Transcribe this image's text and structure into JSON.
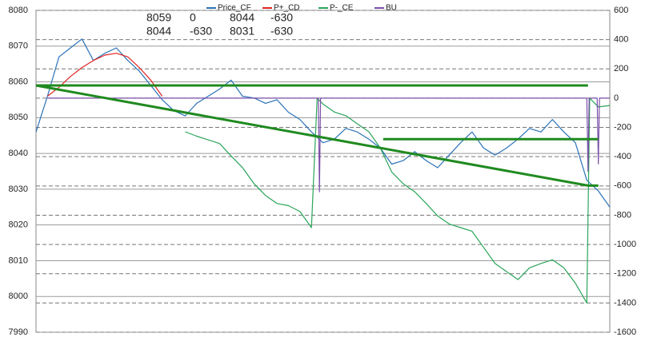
{
  "chart_data": {
    "type": "line",
    "legend": "top",
    "annotations": [
      [
        "8059",
        "0",
        "8044",
        "-630"
      ],
      [
        "8044",
        "-630",
        "8031",
        "-630"
      ]
    ],
    "xlim": [
      0,
      100
    ],
    "ylim": [
      7990,
      8080
    ],
    "yticks": [
      7990,
      8000,
      8010,
      8020,
      8030,
      8040,
      8050,
      8060,
      8070,
      8080
    ],
    "y2lim": [
      -1600,
      600
    ],
    "y2ticks": [
      -1600,
      -1400,
      -1200,
      -1000,
      -800,
      -600,
      -400,
      -200,
      0,
      200,
      400,
      600
    ],
    "grid": true,
    "series": [
      {
        "name": "Price_CF",
        "color": "#2a72b8",
        "axis": "y",
        "x": [
          0,
          2,
          4,
          6,
          8,
          10,
          12,
          14,
          16,
          18,
          20,
          22,
          24,
          26,
          28,
          30,
          32,
          34,
          36,
          38,
          40,
          42,
          44,
          46,
          48,
          50,
          52,
          54,
          56,
          58,
          60,
          62,
          64,
          66,
          68,
          70,
          72,
          74,
          76,
          78,
          80,
          82,
          84,
          86,
          88,
          90,
          92,
          94,
          96,
          98,
          100
        ],
        "values": [
          8046,
          8056,
          8067,
          8069.5,
          8072,
          8066,
          8068,
          8069.5,
          8066,
          8063,
          8059,
          8055,
          8052,
          8050.5,
          8054,
          8056,
          8058,
          8060.5,
          8056,
          8055.5,
          8054,
          8055,
          8051.5,
          8049.5,
          8046,
          8043,
          8044,
          8047,
          8046,
          8044,
          8041.5,
          8037,
          8038,
          8040.5,
          8038,
          8036,
          8039.5,
          8043,
          8046,
          8041.5,
          8039.5,
          8041.5,
          8044,
          8047,
          8046,
          8049.5,
          8046,
          8043,
          8032.5,
          8029.5,
          8025
        ]
      },
      {
        "name": "P+_CD",
        "color": "#e02424",
        "axis": "y",
        "x": [
          2,
          4,
          6,
          8,
          10,
          12,
          14,
          16,
          18,
          20,
          22
        ],
        "values": [
          8056,
          8058.5,
          8061.5,
          8064,
          8066,
          8067.5,
          8068,
          8067,
          8064,
          8060.5,
          8056
        ]
      },
      {
        "name": "P-_CE",
        "color": "#2aa55a",
        "axis": "y2",
        "x": [
          26,
          28,
          30,
          32,
          34,
          36,
          38,
          40,
          42,
          44,
          46,
          48,
          49,
          50,
          52,
          54,
          56,
          58,
          60,
          62,
          64,
          66,
          68,
          70,
          72,
          74,
          76,
          78,
          80,
          82,
          84,
          86,
          88,
          90,
          92,
          94,
          96,
          96.5,
          98,
          100
        ],
        "values": [
          -230,
          -260,
          -285,
          -310,
          -395,
          -475,
          -585,
          -665,
          -720,
          -735,
          -775,
          -885,
          0,
          -40,
          -95,
          -120,
          -175,
          -230,
          -340,
          -505,
          -585,
          -640,
          -720,
          -805,
          -860,
          -885,
          -910,
          -1020,
          -1130,
          -1185,
          -1240,
          -1160,
          -1130,
          -1105,
          -1160,
          -1265,
          -1400,
          0,
          -60,
          -50
        ]
      },
      {
        "name": "BU",
        "color": "#7a4fa8",
        "axis": "y2",
        "x": [
          2,
          49.2,
          49.4,
          49.6,
          96.0,
          96.2,
          96.4,
          97.8,
          98.0,
          98.2,
          100
        ],
        "values": [
          0,
          0,
          -640,
          0,
          0,
          -500,
          0,
          0,
          -450,
          0,
          0
        ]
      }
    ],
    "trend_color": "#1f8a1f",
    "trend_lines": [
      {
        "axis": "y",
        "x": [
          0,
          96.2
        ],
        "values": [
          8059,
          8059
        ]
      },
      {
        "axis": "y",
        "x": [
          0,
          96.2
        ],
        "values": [
          8059,
          8031
        ]
      },
      {
        "axis": "y",
        "x": [
          60.5,
          98
        ],
        "values": [
          8044,
          8044
        ]
      },
      {
        "axis": "y",
        "x": [
          96.2,
          98
        ],
        "values": [
          8031,
          8031
        ]
      }
    ]
  }
}
